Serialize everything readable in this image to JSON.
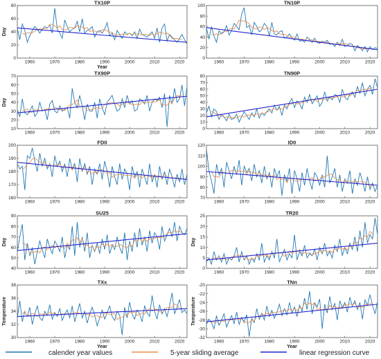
{
  "legend": {
    "items": [
      {
        "label": "calender year values",
        "color": "#1f77b4"
      },
      {
        "label": "5-year sliding average",
        "color": "#e8904f"
      },
      {
        "label": "linear regression curve",
        "color": "#2222cc"
      }
    ]
  },
  "chart_data": [
    {
      "type": "line",
      "title": "TX10P",
      "xlabel": "Year",
      "ylabel": "Day",
      "xlim": [
        1955,
        2023
      ],
      "ylim": [
        0,
        80
      ],
      "yticks": [
        0,
        20,
        40,
        60,
        80
      ],
      "xticks": [
        1960,
        1970,
        1980,
        1990,
        2000,
        2010,
        2020
      ],
      "values": [
        45,
        28,
        52,
        42,
        24,
        34,
        42,
        48,
        44,
        38,
        44,
        48,
        46,
        50,
        38,
        76,
        44,
        38,
        30,
        58,
        48,
        40,
        44,
        46,
        56,
        40,
        60,
        38,
        42,
        44,
        48,
        32,
        40,
        42,
        38,
        44,
        54,
        34,
        38,
        28,
        42,
        36,
        30,
        40,
        36,
        38,
        34,
        40,
        30,
        44,
        36,
        34,
        32,
        36,
        40,
        30,
        46,
        24,
        46,
        52,
        26,
        36,
        32,
        28,
        24,
        30,
        36,
        28,
        22
      ],
      "trend": [
        46,
        24
      ]
    },
    {
      "type": "line",
      "title": "TN10P",
      "xlabel": "",
      "ylabel": "",
      "xlim": [
        1955,
        2023
      ],
      "ylim": [
        0,
        100
      ],
      "yticks": [
        0,
        20,
        40,
        60,
        80,
        100
      ],
      "xticks": [
        1960,
        1970,
        1980,
        1990,
        2000,
        2010,
        2020
      ],
      "values": [
        58,
        36,
        60,
        42,
        30,
        52,
        46,
        50,
        62,
        44,
        52,
        66,
        60,
        54,
        84,
        96,
        58,
        62,
        44,
        68,
        60,
        50,
        54,
        66,
        60,
        42,
        68,
        46,
        44,
        50,
        52,
        38,
        40,
        46,
        38,
        34,
        46,
        32,
        34,
        30,
        40,
        36,
        30,
        38,
        30,
        28,
        32,
        30,
        34,
        26,
        28,
        22,
        30,
        24,
        36,
        22,
        24,
        28,
        26,
        14,
        24,
        20,
        14,
        22,
        12,
        22,
        16,
        20,
        18
      ],
      "trend": [
        58,
        16
      ]
    },
    {
      "type": "line",
      "title": "TX90P",
      "xlabel": "",
      "ylabel": "Day",
      "xlim": [
        1955,
        2023
      ],
      "ylim": [
        10,
        70
      ],
      "yticks": [
        10,
        20,
        30,
        40,
        50,
        60,
        70
      ],
      "xticks": [
        1960,
        1970,
        1980,
        1990,
        2000,
        2010,
        2020
      ],
      "values": [
        30,
        24,
        44,
        28,
        26,
        30,
        36,
        24,
        28,
        40,
        30,
        32,
        20,
        38,
        42,
        30,
        28,
        36,
        30,
        32,
        34,
        22,
        56,
        40,
        34,
        48,
        36,
        20,
        38,
        30,
        30,
        40,
        22,
        44,
        34,
        26,
        40,
        44,
        48,
        38,
        30,
        32,
        44,
        34,
        48,
        38,
        42,
        30,
        32,
        44,
        42,
        38,
        48,
        30,
        40,
        44,
        42,
        46,
        34,
        50,
        12,
        48,
        38,
        56,
        40,
        44,
        60,
        36,
        58
      ],
      "trend": [
        28,
        47
      ]
    },
    {
      "type": "line",
      "title": "TN90P",
      "xlabel": "",
      "ylabel": "",
      "xlim": [
        1955,
        2023
      ],
      "ylim": [
        0,
        80
      ],
      "yticks": [
        0,
        10,
        20,
        30,
        40,
        50,
        60,
        70,
        80
      ],
      "xticks": [
        1960,
        1970,
        1980,
        1990,
        2000,
        2010,
        2020
      ],
      "values": [
        24,
        34,
        18,
        30,
        26,
        14,
        22,
        18,
        12,
        22,
        14,
        16,
        22,
        10,
        18,
        26,
        20,
        14,
        24,
        18,
        30,
        16,
        24,
        20,
        26,
        30,
        24,
        36,
        28,
        34,
        20,
        36,
        30,
        40,
        46,
        32,
        42,
        38,
        30,
        48,
        40,
        52,
        38,
        44,
        50,
        34,
        40,
        56,
        42,
        48,
        44,
        52,
        50,
        40,
        60,
        48,
        44,
        52,
        56,
        48,
        64,
        54,
        70,
        50,
        60,
        66,
        52,
        76,
        62
      ],
      "trend": [
        18,
        60
      ]
    },
    {
      "type": "line",
      "title": "FD0",
      "xlabel": "",
      "ylabel": "",
      "xlim": [
        1955,
        2023
      ],
      "ylim": [
        160,
        200
      ],
      "yticks": [
        160,
        170,
        180,
        190,
        200
      ],
      "xticks": [
        1960,
        1970,
        1980,
        1990,
        2000,
        2010,
        2020
      ],
      "values": [
        186,
        182,
        184,
        166,
        192,
        190,
        198,
        188,
        180,
        194,
        184,
        190,
        182,
        186,
        176,
        192,
        184,
        188,
        180,
        186,
        176,
        190,
        182,
        186,
        172,
        190,
        180,
        186,
        178,
        184,
        170,
        182,
        178,
        186,
        174,
        188,
        180,
        168,
        184,
        176,
        170,
        186,
        174,
        182,
        178,
        166,
        184,
        176,
        180,
        168,
        182,
        176,
        170,
        186,
        172,
        178,
        168,
        184,
        174,
        180,
        170,
        182,
        176,
        168,
        178,
        172,
        182,
        170,
        178
      ],
      "trend": [
        187,
        174
      ]
    },
    {
      "type": "line",
      "title": "ID0",
      "xlabel": "",
      "ylabel": "",
      "xlim": [
        1955,
        2023
      ],
      "ylim": [
        70,
        120
      ],
      "yticks": [
        70,
        80,
        90,
        100,
        110,
        120
      ],
      "xticks": [
        1960,
        1970,
        1980,
        1990,
        2000,
        2010,
        2020
      ],
      "values": [
        116,
        96,
        86,
        74,
        102,
        92,
        98,
        80,
        104,
        96,
        88,
        100,
        92,
        106,
        82,
        100,
        94,
        98,
        86,
        102,
        90,
        96,
        84,
        100,
        88,
        94,
        80,
        98,
        90,
        96,
        72,
        92,
        86,
        98,
        74,
        96,
        88,
        76,
        94,
        82,
        98,
        86,
        78,
        94,
        90,
        82,
        92,
        80,
        110,
        84,
        90,
        98,
        80,
        92,
        76,
        88,
        84,
        96,
        74,
        88,
        82,
        94,
        86,
        76,
        90,
        78,
        84,
        76,
        82
      ],
      "trend": [
        95,
        82
      ]
    },
    {
      "type": "line",
      "title": "SU25",
      "xlabel": "",
      "ylabel": "Day",
      "xlim": [
        1955,
        2023
      ],
      "ylim": [
        40,
        90
      ],
      "yticks": [
        40,
        50,
        60,
        70,
        80,
        90
      ],
      "xticks": [
        1960,
        1970,
        1980,
        1990,
        2000,
        2010,
        2020
      ],
      "values": [
        56,
        70,
        82,
        48,
        64,
        52,
        60,
        44,
        56,
        66,
        58,
        50,
        68,
        60,
        54,
        66,
        62,
        56,
        70,
        50,
        62,
        58,
        80,
        52,
        84,
        60,
        70,
        56,
        74,
        50,
        62,
        56,
        64,
        54,
        68,
        58,
        72,
        54,
        62,
        58,
        70,
        60,
        54,
        74,
        48,
        66,
        56,
        74,
        60,
        78,
        62,
        70,
        56,
        76,
        64,
        74,
        70,
        58,
        80,
        66,
        72,
        78,
        70,
        84,
        66,
        80,
        74,
        72,
        78
      ],
      "trend": [
        57,
        73
      ]
    },
    {
      "type": "line",
      "title": "TR20",
      "xlabel": "",
      "ylabel": "Day",
      "xlim": [
        1955,
        2023
      ],
      "ylim": [
        0,
        25
      ],
      "yticks": [
        0,
        5,
        10,
        15,
        20,
        25
      ],
      "xticks": [
        1960,
        1970,
        1980,
        1990,
        2000,
        2010,
        2020
      ],
      "values": [
        3,
        5,
        2,
        8,
        4,
        6,
        3,
        7,
        2,
        5,
        4,
        6,
        10,
        3,
        8,
        4,
        6,
        2,
        5,
        3,
        7,
        4,
        12,
        3,
        6,
        4,
        8,
        5,
        14,
        3,
        6,
        9,
        4,
        7,
        5,
        16,
        4,
        8,
        6,
        11,
        5,
        7,
        6,
        9,
        4,
        10,
        7,
        12,
        6,
        8,
        5,
        11,
        8,
        14,
        6,
        10,
        7,
        12,
        9,
        15,
        8,
        18,
        10,
        22,
        12,
        16,
        14,
        24,
        16
      ],
      "trend": [
        4,
        12
      ]
    },
    {
      "type": "line",
      "title": "TXx",
      "xlabel": "Year",
      "ylabel": "Temperature",
      "xlim": [
        1955,
        2023
      ],
      "ylim": [
        30,
        38
      ],
      "yticks": [
        30,
        32,
        34,
        36,
        38
      ],
      "xticks": [
        1960,
        1970,
        1980,
        1990,
        2000,
        2010,
        2020
      ],
      "values": [
        33.0,
        35.6,
        32.4,
        34.0,
        33.2,
        34.6,
        32.0,
        33.6,
        34.8,
        33.0,
        32.6,
        34.0,
        33.4,
        35.0,
        32.8,
        33.8,
        33.2,
        34.4,
        32.6,
        33.6,
        34.2,
        33.0,
        34.8,
        32.4,
        33.8,
        35.2,
        33.0,
        34.0,
        32.2,
        33.6,
        34.6,
        33.4,
        31.8,
        33.0,
        34.2,
        32.8,
        33.8,
        34.8,
        33.2,
        32.6,
        34.0,
        33.4,
        30.4,
        34.6,
        33.0,
        35.4,
        33.6,
        32.8,
        34.2,
        33.6,
        32.4,
        34.8,
        33.8,
        33.2,
        36.4,
        34.0,
        32.8,
        35.0,
        33.6,
        34.4,
        33.2,
        34.8,
        36.8,
        33.6,
        34.6,
        35.8,
        33.8,
        34.2,
        33.6
      ],
      "trend": [
        33.2,
        34.4
      ]
    },
    {
      "type": "line",
      "title": "TNn",
      "xlabel": "Year",
      "ylabel": "Temperature",
      "xlim": [
        1955,
        2023
      ],
      "ylim": [
        -32,
        -20
      ],
      "yticks": [
        -32,
        -30,
        -28,
        -26,
        -24,
        -22,
        -20
      ],
      "xticks": [
        1960,
        1970,
        1980,
        1990,
        2000,
        2010,
        2020
      ],
      "values": [
        -29,
        -27.8,
        -28.6,
        -30.0,
        -27.0,
        -29.2,
        -28.0,
        -26.6,
        -29.6,
        -28.2,
        -27.0,
        -28.8,
        -26.2,
        -29.0,
        -27.4,
        -28.4,
        -26.8,
        -31.8,
        -27.6,
        -28.6,
        -25.4,
        -27.8,
        -26.4,
        -28.0,
        -24.8,
        -27.2,
        -25.8,
        -27.6,
        -26.2,
        -24.4,
        -27.0,
        -25.4,
        -26.8,
        -24.0,
        -26.4,
        -25.0,
        -27.2,
        -24.6,
        -26.0,
        -23.0,
        -25.6,
        -21.4,
        -26.6,
        -24.0,
        -25.0,
        -23.2,
        -30.0,
        -24.4,
        -26.4,
        -22.6,
        -25.6,
        -24.2,
        -28.0,
        -23.6,
        -25.2,
        -24.0,
        -26.2,
        -22.8,
        -24.8,
        -23.6,
        -25.6,
        -24.0,
        -27.8,
        -23.4,
        -24.6,
        -22.2,
        -24.6,
        -26.6,
        -23.8
      ],
      "trend": [
        -28.4,
        -24.4
      ]
    }
  ]
}
